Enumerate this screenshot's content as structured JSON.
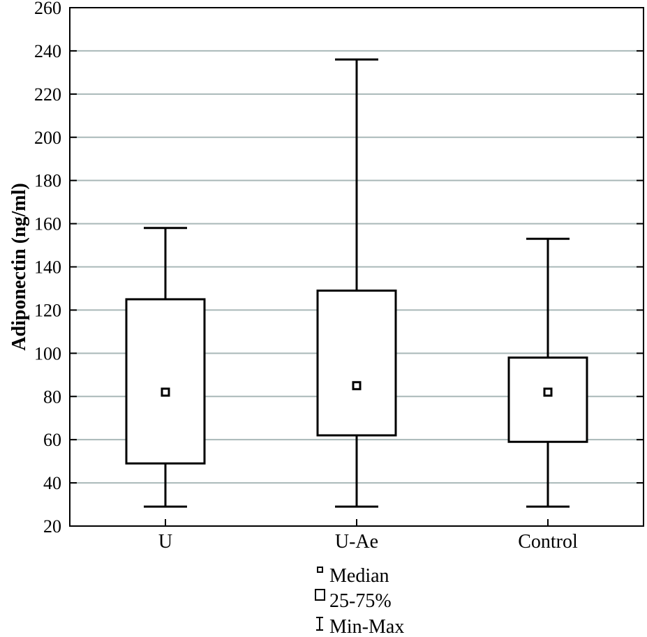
{
  "chart_data": {
    "type": "box",
    "ylabel": "Adiponectin (ng/ml)",
    "xlabel": "",
    "ylim": [
      20,
      260
    ],
    "yticks": [
      20,
      40,
      60,
      80,
      100,
      120,
      140,
      160,
      180,
      200,
      220,
      240,
      260
    ],
    "grid": true,
    "categories": [
      "U",
      "U-Ae",
      "Control"
    ],
    "boxes": [
      {
        "category": "U",
        "min": 29,
        "q1": 49,
        "median": 82,
        "q3": 125,
        "max": 158
      },
      {
        "category": "U-Ae",
        "min": 29,
        "q1": 62,
        "median": 85,
        "q3": 129,
        "max": 236
      },
      {
        "category": "Control",
        "min": 29,
        "q1": 59,
        "median": 82,
        "q3": 98,
        "max": 153
      }
    ],
    "legend": {
      "placement": "bottom",
      "entries": [
        {
          "symbol": "small-square",
          "label": "Median"
        },
        {
          "symbol": "box",
          "label": "25-75%"
        },
        {
          "symbol": "whisker",
          "label": "Min-Max"
        }
      ]
    }
  }
}
